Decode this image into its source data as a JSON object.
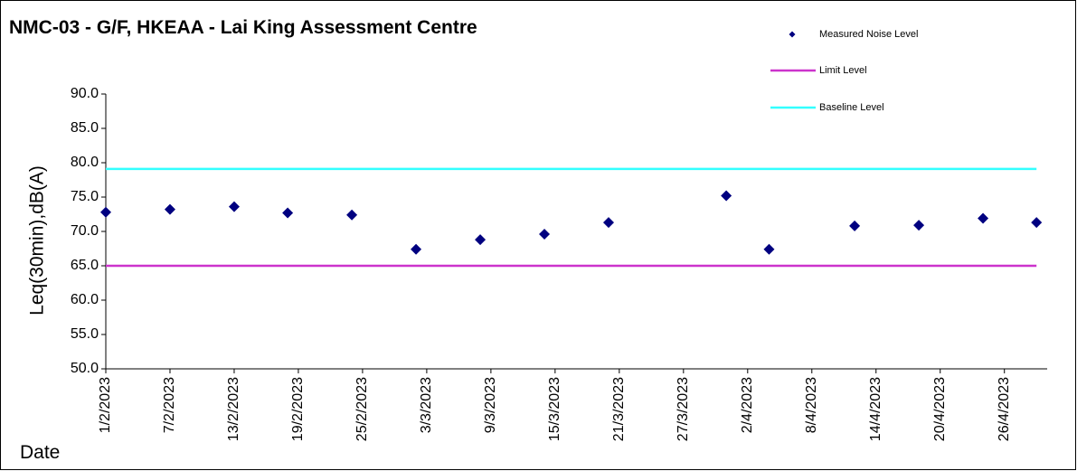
{
  "chart_data": {
    "type": "scatter",
    "title": "NMC-03 - G/F, HKEAA - Lai King Assessment Centre",
    "y_label": "Leq(30min),dB(A)",
    "x_label": "Date",
    "xlim": [
      "1/2/2023",
      "30/4/2023"
    ],
    "xticks": [
      "1/2/2023",
      "7/2/2023",
      "13/2/2023",
      "19/2/2023",
      "25/2/2023",
      "3/3/2023",
      "9/3/2023",
      "15/3/2023",
      "21/3/2023",
      "27/3/2023",
      "2/4/2023",
      "8/4/2023",
      "14/4/2023",
      "20/4/2023",
      "26/4/2023"
    ],
    "ylim": [
      50,
      90
    ],
    "yticks": [
      {
        "value": 50,
        "label": "50.0"
      },
      {
        "value": 55,
        "label": "55.0"
      },
      {
        "value": 60,
        "label": "60.0"
      },
      {
        "value": 65,
        "label": "65.0"
      },
      {
        "value": 70,
        "label": "70.0"
      },
      {
        "value": 75,
        "label": "75.0"
      },
      {
        "value": 80,
        "label": "80.0"
      },
      {
        "value": 85,
        "label": "85.0"
      },
      {
        "value": 90,
        "label": "90.0"
      }
    ],
    "legend": "top-right",
    "series": [
      {
        "name": "Measured Noise Level",
        "type": "scatter",
        "color": "#000080",
        "x": [
          "1/2/2023",
          "7/2/2023",
          "13/2/2023",
          "18/2/2023",
          "24/2/2023",
          "2/3/2023",
          "8/3/2023",
          "14/3/2023",
          "20/3/2023",
          "31/3/2023",
          "4/4/2023",
          "12/4/2023",
          "18/4/2023",
          "24/4/2023",
          "29/4/2023"
        ],
        "values": [
          72.8,
          73.2,
          73.6,
          72.7,
          72.4,
          67.4,
          68.8,
          69.6,
          71.3,
          75.2,
          67.4,
          70.8,
          70.9,
          71.9,
          71.3
        ]
      },
      {
        "name": "Limit Level",
        "type": "line",
        "color": "#cc33cc",
        "x": [
          "1/2/2023",
          "29/4/2023"
        ],
        "values": [
          65,
          65
        ]
      },
      {
        "name": "Baseline Level",
        "type": "line",
        "color": "#33ffff",
        "x": [
          "1/2/2023",
          "29/4/2023"
        ],
        "values": [
          79.1,
          79.1
        ]
      }
    ]
  }
}
